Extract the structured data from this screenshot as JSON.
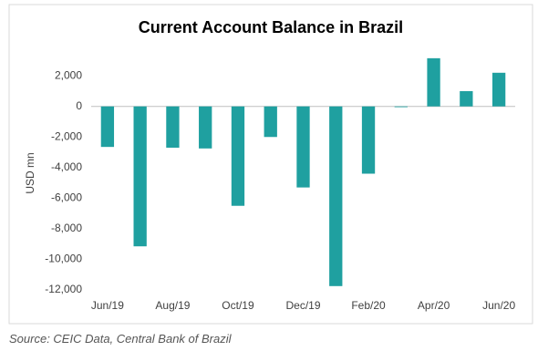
{
  "chart_data": {
    "type": "bar",
    "title": "Current Account Balance in Brazil",
    "y_label": "USD mn",
    "categories": [
      "Jun/19",
      null,
      "Aug/19",
      null,
      "Oct/19",
      null,
      "Dec/19",
      null,
      "Feb/20",
      null,
      "Apr/20",
      null,
      "Jun/20"
    ],
    "values": [
      -2650,
      -9150,
      -2700,
      -2750,
      -6500,
      -2000,
      -5300,
      -11750,
      -4400,
      -50,
      3150,
      1000,
      2200
    ],
    "color": "#1fa0a0",
    "ylim": [
      -12000,
      3500
    ],
    "yticks": [
      {
        "value": -12000,
        "label": "-12,000"
      },
      {
        "value": -10000,
        "label": "-10,000"
      },
      {
        "value": -8000,
        "label": "-8,000"
      },
      {
        "value": -6000,
        "label": "-6,000"
      },
      {
        "value": -4000,
        "label": "-4,000"
      },
      {
        "value": -2000,
        "label": "-2,000"
      },
      0,
      {
        "value": 2000,
        "label": "2,000"
      }
    ],
    "grid": false
  },
  "source": "Source: CEIC Data, Central Bank of Brazil"
}
